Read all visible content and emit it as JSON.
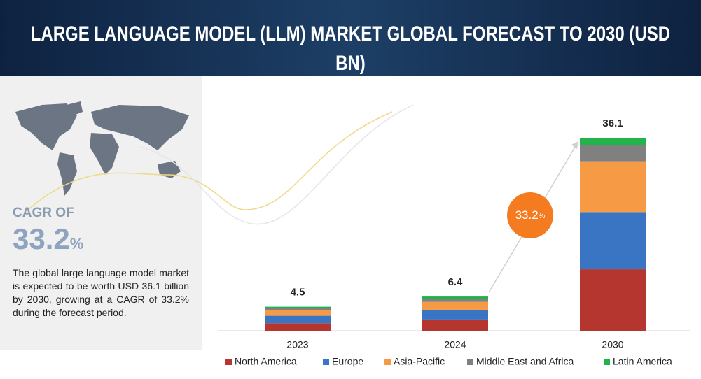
{
  "chart_data": {
    "type": "stacked-bar",
    "title": "LARGE LANGUAGE MODEL (LLM) MARKET GLOBAL FORECAST TO 2030 (USD BN)",
    "categories": [
      "2023",
      "2024",
      "2030"
    ],
    "totals": [
      4.5,
      6.4,
      36.1
    ],
    "series": [
      {
        "name": "North America",
        "color": "#b5362e",
        "values": [
          1.4,
          2.1,
          11.5
        ]
      },
      {
        "name": "Europe",
        "color": "#3a75c4",
        "values": [
          1.4,
          1.8,
          10.7
        ]
      },
      {
        "name": "Asia-Pacific",
        "color": "#f79a46",
        "values": [
          1.0,
          1.5,
          9.5
        ]
      },
      {
        "name": "Middle East and Africa",
        "color": "#808080",
        "values": [
          0.4,
          0.6,
          3.0
        ]
      },
      {
        "name": "Latin America",
        "color": "#22b34a",
        "values": [
          0.3,
          0.4,
          1.4
        ]
      }
    ],
    "growth_annotation": {
      "value": "33.2",
      "unit": "%"
    },
    "cagr": {
      "label": "CAGR OF",
      "value": "33.2",
      "unit": "%"
    },
    "description": "The global large language model market is expected to be worth USD 36.1 billion by 2030, growing at a CAGR of 33.2% during the forecast period."
  }
}
